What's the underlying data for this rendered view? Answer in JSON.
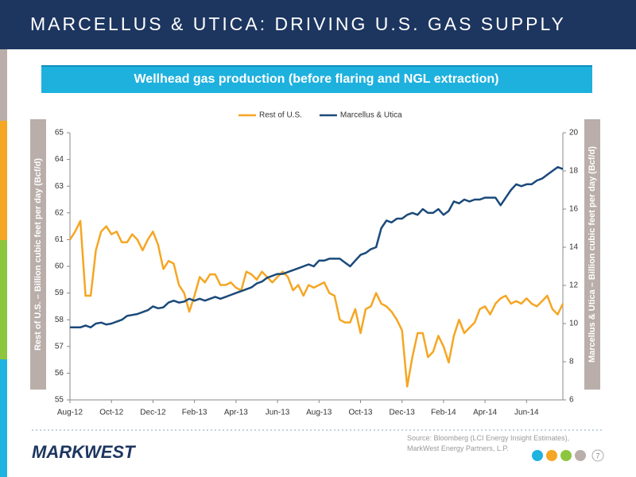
{
  "header": {
    "title": "MARCELLUS & UTICA: DRIVING U.S. GAS SUPPLY"
  },
  "chart_data": {
    "type": "line",
    "title": "Wellhead gas production (before flaring and NGL extraction)",
    "y_label": "Rest of U.S. – Billion cubic feet per day (Bcf/d)",
    "y2_label": "Marcellus & Utica – Billion cubic feet per day (Bcf/d)",
    "categories": [
      "Aug-12",
      null,
      null,
      null,
      null,
      null,
      null,
      null,
      "Oct-12",
      null,
      null,
      null,
      null,
      null,
      null,
      null,
      "Dec-12",
      null,
      null,
      null,
      null,
      null,
      null,
      null,
      "Feb-13",
      null,
      null,
      null,
      null,
      null,
      null,
      null,
      "Apr-13",
      null,
      null,
      null,
      null,
      null,
      null,
      null,
      "Jun-13",
      null,
      null,
      null,
      null,
      null,
      null,
      null,
      "Aug-13",
      null,
      null,
      null,
      null,
      null,
      null,
      null,
      "Oct-13",
      null,
      null,
      null,
      null,
      null,
      null,
      null,
      "Dec-13",
      null,
      null,
      null,
      null,
      null,
      null,
      null,
      "Feb-14",
      null,
      null,
      null,
      null,
      null,
      null,
      null,
      "Apr-14",
      null,
      null,
      null,
      null,
      null,
      null,
      null,
      "Jun-14",
      null,
      null,
      null,
      null,
      null,
      null,
      null
    ],
    "series": [
      {
        "name": "Rest of U.S.",
        "color": "#f5a623",
        "axis": "y",
        "values": [
          61.0,
          61.3,
          61.7,
          58.9,
          58.9,
          60.6,
          61.3,
          61.5,
          61.2,
          61.3,
          60.9,
          60.9,
          61.2,
          61.0,
          60.6,
          61.0,
          61.3,
          60.8,
          59.9,
          60.2,
          60.1,
          59.3,
          59.0,
          58.3,
          58.9,
          59.6,
          59.4,
          59.7,
          59.7,
          59.3,
          59.3,
          59.4,
          59.2,
          59.1,
          59.8,
          59.7,
          59.5,
          59.8,
          59.6,
          59.4,
          59.6,
          59.8,
          59.6,
          59.1,
          59.3,
          58.9,
          59.3,
          59.2,
          59.3,
          59.4,
          59.0,
          58.9,
          58.0,
          57.9,
          57.9,
          58.4,
          57.5,
          58.4,
          58.5,
          59.0,
          58.6,
          58.5,
          58.3,
          58.0,
          57.6,
          55.5,
          56.6,
          57.5,
          57.5,
          56.6,
          56.8,
          57.4,
          57.0,
          56.4,
          57.4,
          58.0,
          57.5,
          57.7,
          57.9,
          58.4,
          58.5,
          58.2,
          58.6,
          58.8,
          58.9,
          58.6,
          58.7,
          58.6,
          58.8,
          58.6,
          58.5,
          58.7,
          58.9,
          58.4,
          58.2,
          58.6
        ]
      },
      {
        "name": "Marcellus & Utica",
        "color": "#1b4a7a",
        "axis": "y2",
        "values": [
          9.8,
          9.8,
          9.8,
          9.9,
          9.8,
          10.0,
          10.05,
          9.95,
          10.0,
          10.1,
          10.2,
          10.4,
          10.45,
          10.5,
          10.6,
          10.7,
          10.9,
          10.8,
          10.85,
          11.1,
          11.2,
          11.1,
          11.15,
          11.3,
          11.2,
          11.3,
          11.2,
          11.3,
          11.4,
          11.3,
          11.4,
          11.5,
          11.6,
          11.7,
          11.8,
          11.9,
          12.1,
          12.2,
          12.4,
          12.5,
          12.6,
          12.6,
          12.7,
          12.8,
          12.9,
          13.0,
          13.1,
          13.0,
          13.3,
          13.3,
          13.4,
          13.4,
          13.4,
          13.2,
          13.0,
          13.3,
          13.6,
          13.7,
          13.9,
          14.0,
          15.0,
          15.4,
          15.3,
          15.5,
          15.5,
          15.7,
          15.8,
          15.7,
          16.0,
          15.8,
          15.8,
          16.0,
          15.7,
          15.9,
          16.4,
          16.3,
          16.5,
          16.4,
          16.5,
          16.5,
          16.6,
          16.6,
          16.6,
          16.2,
          16.6,
          17.0,
          17.3,
          17.2,
          17.3,
          17.3,
          17.5,
          17.6,
          17.8,
          18.0,
          18.2,
          18.1
        ]
      }
    ],
    "ylim": [
      55,
      65
    ],
    "yticks": [
      55,
      56,
      57,
      58,
      59,
      60,
      61,
      62,
      63,
      64,
      65
    ],
    "y2lim": [
      6,
      20
    ],
    "y2ticks": [
      6,
      8,
      10,
      12,
      14,
      16,
      18,
      20
    ],
    "grid": false,
    "legend": "top"
  },
  "footer": {
    "logo": "MARKWEST",
    "source": "Source: Bloomberg (LCI Energy Insight Estimates), MarkWest Energy Partners, L.P.",
    "page": "7"
  }
}
